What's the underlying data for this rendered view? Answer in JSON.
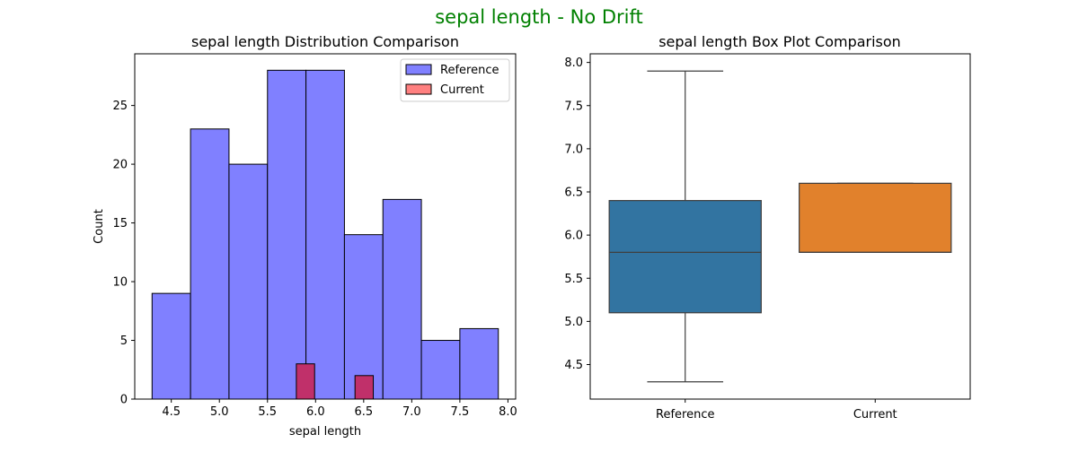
{
  "figure": {
    "suptitle": "sepal length - No Drift",
    "suptitle_color": "#008000"
  },
  "chart_data": [
    {
      "type": "bar",
      "subtype": "histogram",
      "title": "sepal length Distribution Comparison",
      "xlabel": "sepal length",
      "ylabel": "Count",
      "xlim": [
        4.12,
        8.08
      ],
      "ylim": [
        0,
        29.4
      ],
      "xticks": [
        "4.5",
        "5.0",
        "5.5",
        "6.0",
        "6.5",
        "7.0",
        "7.5",
        "8.0"
      ],
      "yticks": [
        "0",
        "5",
        "10",
        "15",
        "20",
        "25"
      ],
      "legend": "top-right",
      "grid": false,
      "series": [
        {
          "name": "Reference",
          "color": "#8080ff",
          "bins": [
            {
              "start": 4.3,
              "end": 4.7,
              "value": 9
            },
            {
              "start": 4.7,
              "end": 5.1,
              "value": 23
            },
            {
              "start": 5.1,
              "end": 5.5,
              "value": 20
            },
            {
              "start": 5.5,
              "end": 5.9,
              "value": 28
            },
            {
              "start": 5.9,
              "end": 6.3,
              "value": 28
            },
            {
              "start": 6.3,
              "end": 6.7,
              "value": 14
            },
            {
              "start": 6.7,
              "end": 7.1,
              "value": 17
            },
            {
              "start": 7.1,
              "end": 7.5,
              "value": 5
            },
            {
              "start": 7.5,
              "end": 7.9,
              "value": 6
            }
          ]
        },
        {
          "name": "Current",
          "color": "#ff8080",
          "overlap_color": "#c0306a",
          "bins": [
            {
              "start": 5.8,
              "end": 5.99,
              "value": 3
            },
            {
              "start": 6.41,
              "end": 6.6,
              "value": 2
            }
          ]
        }
      ]
    },
    {
      "type": "box",
      "title": "sepal length Box Plot Comparison",
      "categories": [
        "Reference",
        "Current"
      ],
      "ylim": [
        4.1,
        8.1
      ],
      "yticks": [
        "4.5",
        "5.0",
        "5.5",
        "6.0",
        "6.5",
        "7.0",
        "7.5",
        "8.0"
      ],
      "grid": false,
      "series": [
        {
          "name": "Reference",
          "color": "#3274a1",
          "whisker_low": 4.3,
          "q1": 5.1,
          "median": 5.8,
          "q3": 6.4,
          "whisker_high": 7.9
        },
        {
          "name": "Current",
          "color": "#e1812c",
          "whisker_low": 5.8,
          "q1": 5.8,
          "median": 5.8,
          "q3": 6.6,
          "whisker_high": 6.6
        }
      ]
    }
  ]
}
